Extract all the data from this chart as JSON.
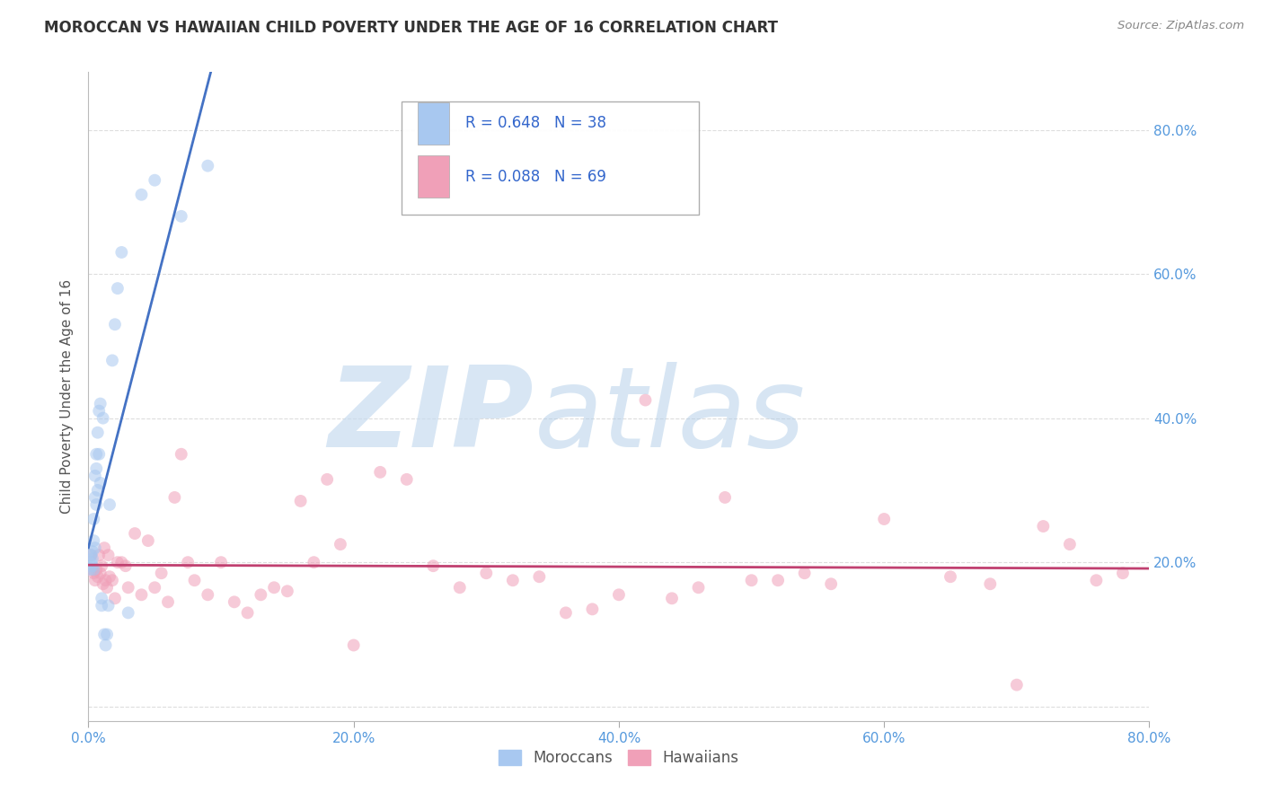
{
  "title": "MOROCCAN VS HAWAIIAN CHILD POVERTY UNDER THE AGE OF 16 CORRELATION CHART",
  "source": "Source: ZipAtlas.com",
  "ylabel": "Child Poverty Under the Age of 16",
  "xlim": [
    0.0,
    0.8
  ],
  "ylim": [
    -0.02,
    0.88
  ],
  "x_ticks": [
    0.0,
    0.2,
    0.4,
    0.6,
    0.8
  ],
  "y_ticks": [
    0.0,
    0.2,
    0.4,
    0.6,
    0.8
  ],
  "x_tick_labels": [
    "0.0%",
    "20.0%",
    "40.0%",
    "60.0%",
    "80.0%"
  ],
  "right_y_tick_labels": [
    "20.0%",
    "40.0%",
    "60.0%",
    "80.0%"
  ],
  "right_y_ticks": [
    0.2,
    0.4,
    0.6,
    0.8
  ],
  "moroccan_color": "#A8C8F0",
  "hawaiian_color": "#F0A0B8",
  "moroccan_line_color": "#4472C4",
  "hawaiian_line_color": "#C04070",
  "moroccan_R": 0.648,
  "moroccan_N": 38,
  "hawaiian_R": 0.088,
  "hawaiian_N": 69,
  "background_color": "#FFFFFF",
  "grid_color": "#DDDDDD",
  "marker_size": 100,
  "marker_alpha": 0.55,
  "moroccan_x": [
    0.001,
    0.002,
    0.002,
    0.003,
    0.003,
    0.003,
    0.004,
    0.004,
    0.004,
    0.005,
    0.005,
    0.005,
    0.006,
    0.006,
    0.006,
    0.007,
    0.007,
    0.008,
    0.008,
    0.009,
    0.009,
    0.01,
    0.01,
    0.011,
    0.012,
    0.013,
    0.014,
    0.015,
    0.016,
    0.018,
    0.02,
    0.022,
    0.025,
    0.03,
    0.04,
    0.05,
    0.07,
    0.09
  ],
  "moroccan_y": [
    0.19,
    0.2,
    0.21,
    0.195,
    0.205,
    0.215,
    0.19,
    0.23,
    0.26,
    0.22,
    0.29,
    0.32,
    0.33,
    0.28,
    0.35,
    0.38,
    0.3,
    0.41,
    0.35,
    0.31,
    0.42,
    0.15,
    0.14,
    0.4,
    0.1,
    0.085,
    0.1,
    0.14,
    0.28,
    0.48,
    0.53,
    0.58,
    0.63,
    0.13,
    0.71,
    0.73,
    0.68,
    0.75
  ],
  "hawaiian_x": [
    0.002,
    0.003,
    0.004,
    0.005,
    0.006,
    0.007,
    0.008,
    0.009,
    0.01,
    0.011,
    0.012,
    0.013,
    0.014,
    0.015,
    0.016,
    0.018,
    0.02,
    0.022,
    0.025,
    0.028,
    0.03,
    0.035,
    0.04,
    0.045,
    0.05,
    0.055,
    0.06,
    0.065,
    0.07,
    0.075,
    0.08,
    0.09,
    0.1,
    0.11,
    0.12,
    0.13,
    0.14,
    0.15,
    0.16,
    0.17,
    0.18,
    0.19,
    0.2,
    0.22,
    0.24,
    0.26,
    0.28,
    0.3,
    0.32,
    0.34,
    0.36,
    0.38,
    0.4,
    0.42,
    0.44,
    0.46,
    0.48,
    0.5,
    0.52,
    0.54,
    0.56,
    0.6,
    0.65,
    0.68,
    0.7,
    0.72,
    0.74,
    0.76,
    0.78
  ],
  "hawaiian_y": [
    0.21,
    0.19,
    0.185,
    0.175,
    0.19,
    0.18,
    0.21,
    0.185,
    0.195,
    0.17,
    0.22,
    0.175,
    0.165,
    0.21,
    0.18,
    0.175,
    0.15,
    0.2,
    0.2,
    0.195,
    0.165,
    0.24,
    0.155,
    0.23,
    0.165,
    0.185,
    0.145,
    0.29,
    0.35,
    0.2,
    0.175,
    0.155,
    0.2,
    0.145,
    0.13,
    0.155,
    0.165,
    0.16,
    0.285,
    0.2,
    0.315,
    0.225,
    0.085,
    0.325,
    0.315,
    0.195,
    0.165,
    0.185,
    0.175,
    0.18,
    0.13,
    0.135,
    0.155,
    0.425,
    0.15,
    0.165,
    0.29,
    0.175,
    0.175,
    0.185,
    0.17,
    0.26,
    0.18,
    0.17,
    0.03,
    0.25,
    0.225,
    0.175,
    0.185
  ]
}
